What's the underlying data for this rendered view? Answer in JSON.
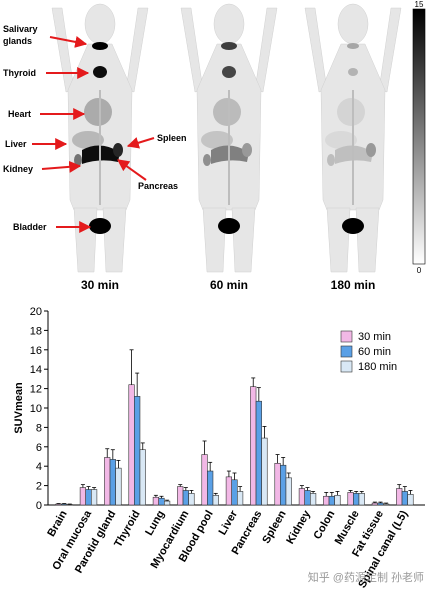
{
  "pet_panel": {
    "organ_labels": {
      "salivary": "Salivary\nglands",
      "thyroid": "Thyroid",
      "heart": "Heart",
      "liver": "Liver",
      "kidney": "Kidney",
      "spleen": "Spleen",
      "pancreas": "Pancreas",
      "bladder": "Bladder"
    },
    "time_labels": [
      "30 min",
      "60 min",
      "180 min"
    ],
    "colorbar": {
      "max_label": "15",
      "min_label": "0"
    }
  },
  "chart_data": {
    "type": "bar",
    "ylabel": "SUVmean",
    "ylim": [
      0,
      20
    ],
    "yticks": [
      0,
      2,
      4,
      6,
      8,
      10,
      12,
      14,
      16,
      18,
      20
    ],
    "legend_position": "top-right",
    "categories": [
      "Brain",
      "Oral mucosa",
      "Parotid gland",
      "Thyroid",
      "Lung",
      "Myocardium",
      "Blood pool",
      "Liver",
      "Pancreas",
      "Spleen",
      "Kidney",
      "Colon",
      "Muscle",
      "Fat tissue",
      "Spinal canal (L5)"
    ],
    "series": [
      {
        "name": "30 min",
        "color": "#f2b8e6",
        "values": [
          0.1,
          1.8,
          4.9,
          12.4,
          0.8,
          1.9,
          5.2,
          2.9,
          12.2,
          4.3,
          1.7,
          0.9,
          1.3,
          0.2,
          1.7
        ],
        "errors": [
          0.05,
          0.3,
          0.9,
          3.6,
          0.2,
          0.2,
          1.4,
          0.6,
          0.9,
          0.9,
          0.3,
          0.4,
          0.2,
          0.1,
          0.4
        ]
      },
      {
        "name": "60 min",
        "color": "#5aa0e6",
        "values": [
          0.1,
          1.6,
          4.7,
          11.2,
          0.7,
          1.5,
          3.5,
          2.6,
          10.7,
          4.1,
          1.5,
          0.9,
          1.2,
          0.2,
          1.4
        ],
        "errors": [
          0.05,
          0.3,
          1.0,
          2.4,
          0.2,
          0.3,
          0.9,
          0.7,
          1.4,
          0.8,
          0.3,
          0.4,
          0.2,
          0.1,
          0.5
        ]
      },
      {
        "name": "180 min",
        "color": "#d9e8f5",
        "values": [
          0.05,
          1.6,
          3.8,
          5.7,
          0.4,
          1.2,
          1.0,
          1.4,
          6.9,
          2.8,
          1.2,
          1.0,
          1.2,
          0.1,
          1.1
        ],
        "errors": [
          0.05,
          0.2,
          0.8,
          0.7,
          0.1,
          0.3,
          0.2,
          0.5,
          1.2,
          0.5,
          0.2,
          0.4,
          0.2,
          0.1,
          0.4
        ]
      }
    ]
  },
  "watermark": "知乎 @药源定制 孙老师"
}
